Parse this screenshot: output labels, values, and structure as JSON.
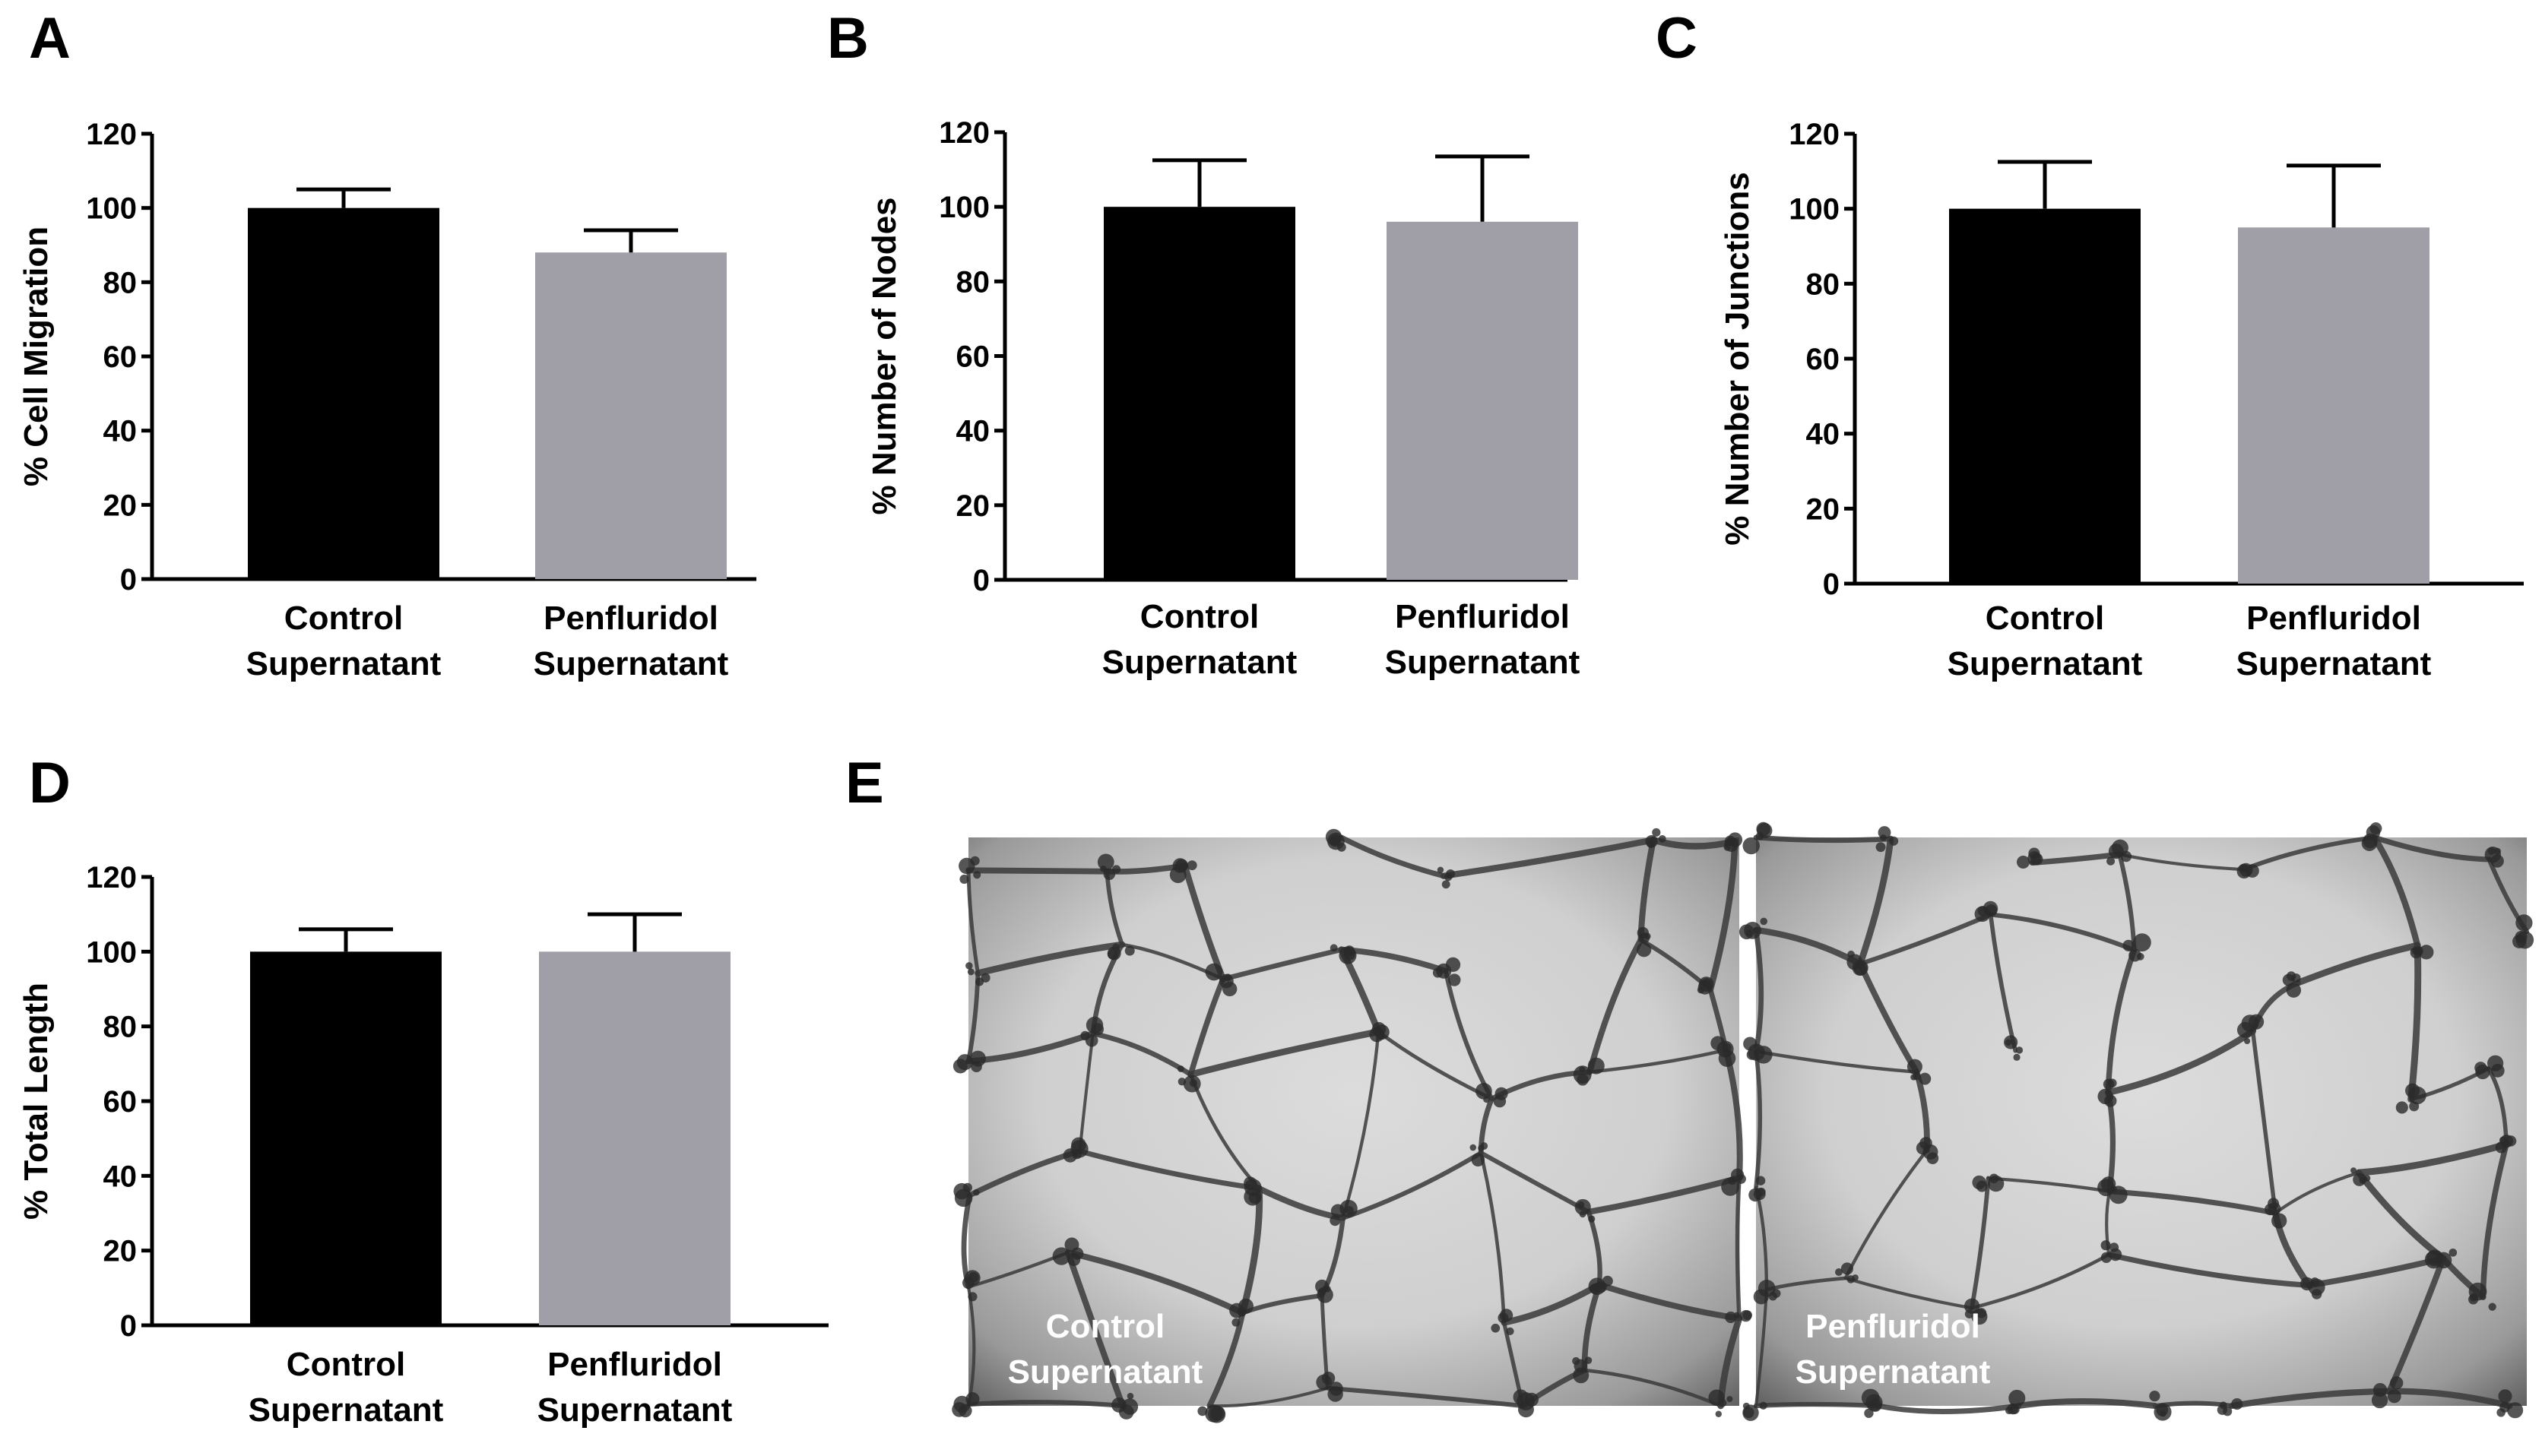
{
  "panels": {
    "A": "A",
    "B": "B",
    "C": "C",
    "D": "D",
    "E": "E"
  },
  "colors": {
    "control_bar": "#000000",
    "penfluridol_bar": "#a09ea6"
  },
  "chart_data": [
    {
      "panel": "A",
      "type": "bar",
      "categories": [
        [
          "Control",
          "Supernatant"
        ],
        [
          "Penfluridol",
          "Supernatant"
        ]
      ],
      "values": [
        100,
        88
      ],
      "errors": [
        5,
        6
      ],
      "ylabel": "% Cell Migration",
      "ylim": [
        0,
        120
      ],
      "yticks": [
        0,
        20,
        40,
        60,
        80,
        100,
        120
      ]
    },
    {
      "panel": "B",
      "type": "bar",
      "categories": [
        [
          "Control",
          "Supernatant"
        ],
        [
          "Penfluridol",
          "Supernatant"
        ]
      ],
      "values": [
        100,
        96
      ],
      "errors": [
        12.5,
        17.5
      ],
      "ylabel": "% Number of Nodes",
      "ylim": [
        0,
        120
      ],
      "yticks": [
        0,
        20,
        40,
        60,
        80,
        100,
        120
      ]
    },
    {
      "panel": "C",
      "type": "bar",
      "categories": [
        [
          "Control",
          "Supernatant"
        ],
        [
          "Penfluridol",
          "Supernatant"
        ]
      ],
      "values": [
        100,
        95
      ],
      "errors": [
        12.5,
        16.5
      ],
      "ylabel": "% Number of Junctions",
      "ylim": [
        0,
        120
      ],
      "yticks": [
        0,
        20,
        40,
        60,
        80,
        100,
        120
      ]
    },
    {
      "panel": "D",
      "type": "bar",
      "categories": [
        [
          "Control",
          "Supernatant"
        ],
        [
          "Penfluridol",
          "Supernatant"
        ]
      ],
      "values": [
        100,
        100
      ],
      "errors": [
        6,
        10
      ],
      "ylabel": "% Total Length",
      "ylim": [
        0,
        120
      ],
      "yticks": [
        0,
        20,
        40,
        60,
        80,
        100,
        120
      ]
    }
  ],
  "micrographs": [
    {
      "label": [
        "Control",
        "Supernatant"
      ]
    },
    {
      "label": [
        "Penfluridol",
        "Supernatant"
      ]
    }
  ]
}
